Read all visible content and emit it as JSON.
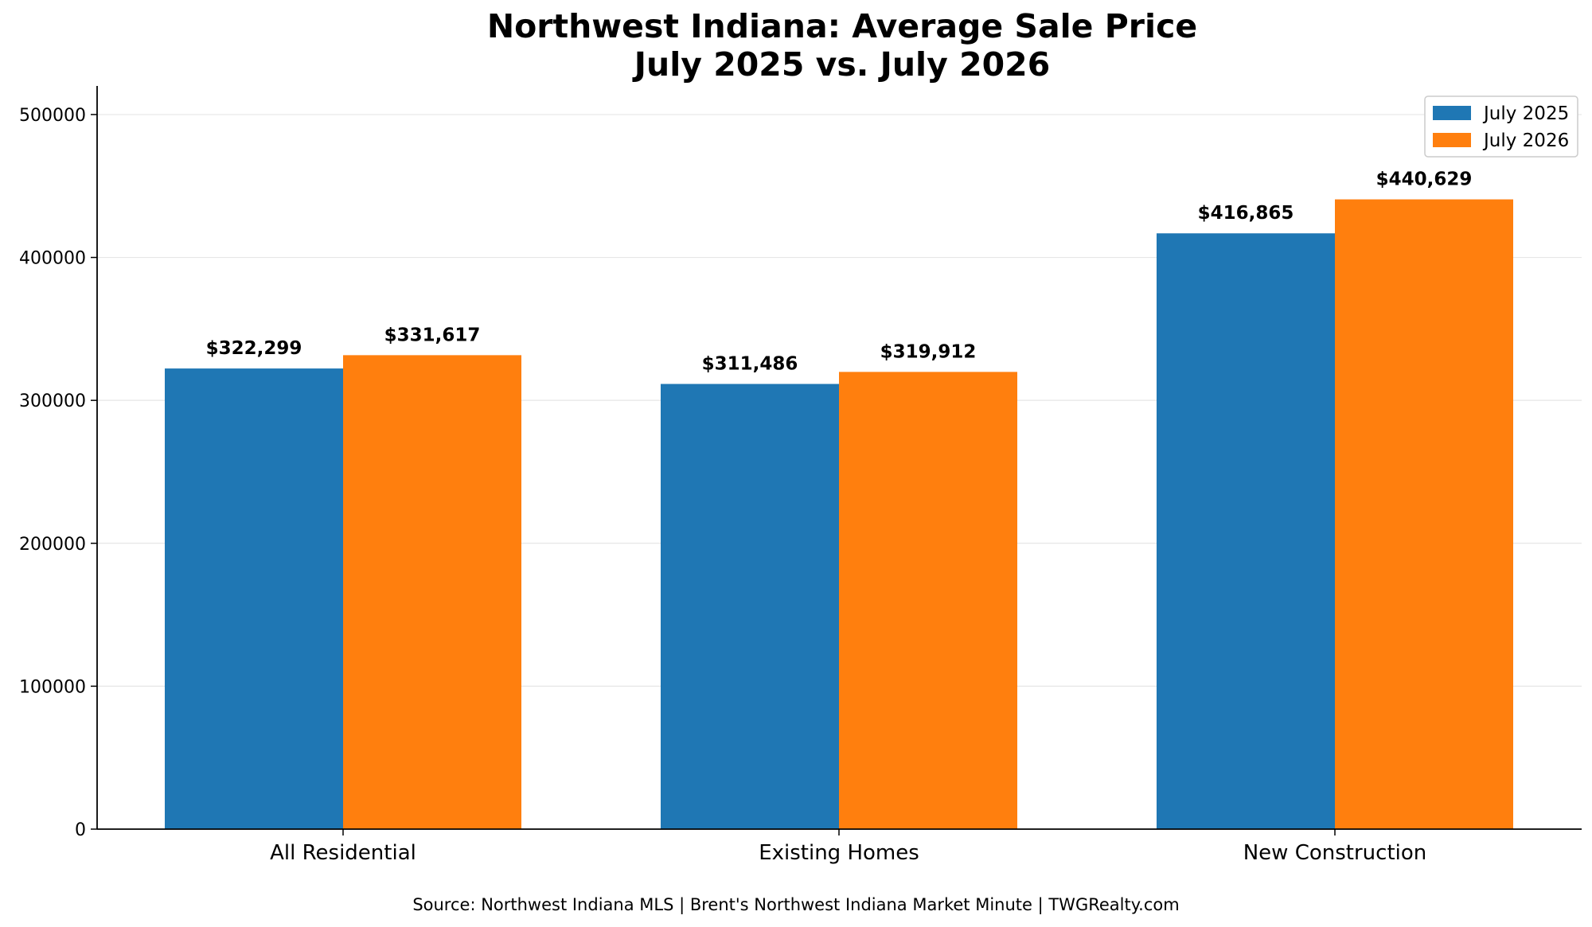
{
  "chart_data": {
    "type": "bar",
    "title": "Northwest Indiana: Average Sale Price",
    "subtitle": "July 2025 vs. July 2026",
    "xlabel": "",
    "ylabel": "",
    "categories": [
      "All Residential",
      "Existing Homes",
      "New Construction"
    ],
    "series": [
      {
        "name": "July 2025",
        "color": "#1f77b4",
        "values": [
          322299,
          311486,
          416865
        ],
        "labels": [
          "$322,299",
          "$311,486",
          "$416,865"
        ]
      },
      {
        "name": "July 2026",
        "color": "#ff7f0e",
        "values": [
          331617,
          319912,
          440629
        ],
        "labels": [
          "$331,617",
          "$319,912",
          "$440,629"
        ]
      }
    ],
    "ylim": [
      0,
      520000
    ],
    "yticks": [
      0,
      100000,
      200000,
      300000,
      400000,
      500000
    ],
    "ytick_labels": [
      "0",
      "100000",
      "200000",
      "300000",
      "400000",
      "500000"
    ],
    "grid": "horizontal",
    "legend_position": "top-right"
  },
  "source_note": "Source: Northwest Indiana MLS | Brent's Northwest Indiana Market Minute | TWGRealty.com"
}
